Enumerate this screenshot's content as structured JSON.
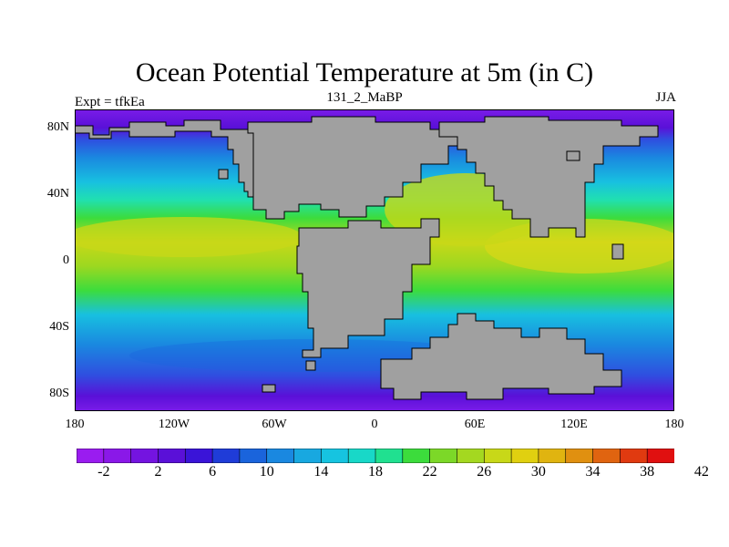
{
  "title": "Ocean Potential Temperature at 5m (in C)",
  "subtitle": "131_2_MaBP",
  "left_label": "Expt = tfkEa",
  "right_label": "JJA",
  "y_ticks": [
    "80N",
    "40N",
    "0",
    "40S",
    "80S"
  ],
  "x_ticks": [
    "180",
    "120W",
    "60W",
    "0",
    "60E",
    "120E",
    "180"
  ],
  "colorbar": {
    "labels": [
      "-2",
      "2",
      "6",
      "10",
      "14",
      "18",
      "22",
      "26",
      "30",
      "34",
      "38",
      "42"
    ],
    "colors": [
      "#9a1cf0",
      "#8a18e8",
      "#7414e0",
      "#5a10d8",
      "#3a14d8",
      "#1f3cd8",
      "#1a64dc",
      "#1a88e0",
      "#18a8e0",
      "#16c4e0",
      "#18d8c8",
      "#20e090",
      "#3cdc3c",
      "#7cd828",
      "#a4d820",
      "#c8d818",
      "#e0d010",
      "#e0b410",
      "#e09010",
      "#e06410",
      "#e03a10",
      "#e01010"
    ],
    "range": [
      -4,
      44
    ]
  },
  "map": {
    "land_color": "#a0a0a0",
    "colors": {
      "polar_north": "#7a1ce8",
      "polar_south": "#7a1ce8",
      "deep_blue": "#2f4fe0",
      "blue": "#1a88e0",
      "cyan": "#18c0e0",
      "teal": "#20e0b0",
      "green": "#3cdc3c",
      "lime": "#9cd820",
      "yellow": "#d8d818"
    }
  }
}
